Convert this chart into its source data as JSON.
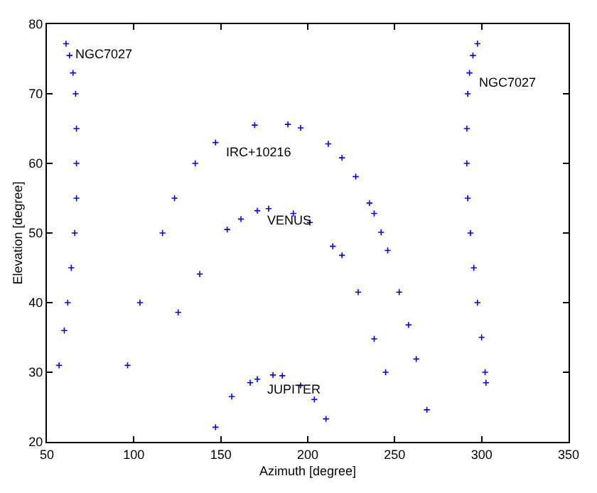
{
  "chart_data": {
    "type": "scatter",
    "xlabel": "Azimuth [degree]",
    "ylabel": "Elevation [degree]",
    "xlim": [
      50,
      350
    ],
    "xticks": [
      50,
      100,
      150,
      200,
      250,
      300,
      350
    ],
    "ylim": [
      20,
      80
    ],
    "yticks": [
      20,
      30,
      40,
      50,
      60,
      70,
      80
    ],
    "marker": "cross",
    "series": [
      {
        "color": "#0000ff",
        "x": [
          57,
          60,
          62,
          64,
          66,
          67,
          67,
          67,
          66.5,
          65,
          63,
          61
        ],
        "values": [
          31,
          36,
          40,
          45,
          50,
          55,
          60,
          65,
          70,
          73,
          75.5,
          77.2
        ]
      },
      {
        "color": "#0000ff",
        "x": [
          302.5,
          302,
          300,
          297.6,
          295.5,
          293.6,
          292,
          291.5,
          291.5,
          292,
          293,
          295,
          297.6
        ],
        "values": [
          28.5,
          30,
          35,
          40,
          45,
          50,
          55,
          60,
          65,
          70,
          73,
          75.5,
          77.2
        ]
      },
      {
        "color": "#0000ff",
        "x": [
          96.4,
          103.5,
          116.5,
          123.4,
          135.3,
          147,
          169.5,
          188.6,
          195.9,
          211.8,
          219.7,
          227.6,
          235.5,
          238.2,
          242.2,
          246,
          252.6,
          258,
          262.4,
          268.5
        ],
        "values": [
          31,
          40,
          50,
          55,
          60,
          63,
          65.5,
          65.6,
          65.1,
          62.8,
          60.8,
          58.1,
          54.3,
          52.8,
          50.1,
          47.5,
          41.5,
          36.8,
          31.9,
          24.6
        ]
      },
      {
        "color": "#0000ff",
        "x": [
          125.5,
          137.9,
          153.7,
          161.6,
          171,
          177.5,
          191.7,
          201.2,
          214.4,
          219.7,
          229,
          238.2,
          244.8
        ],
        "values": [
          38.6,
          44.1,
          50.5,
          52,
          53.2,
          53.5,
          52.8,
          51.5,
          48.1,
          46.8,
          41.5,
          34.8,
          30
        ]
      },
      {
        "color": "#0000ff",
        "x": [
          147,
          156.3,
          166.9,
          171,
          180,
          185.4,
          195.9,
          203.8,
          210.5
        ],
        "values": [
          22.1,
          26.5,
          28.5,
          29,
          29.6,
          29.5,
          28.1,
          26.1,
          23.3
        ]
      }
    ],
    "annotations": [
      {
        "text": "NGC7027",
        "x": 61,
        "y": 77.2
      },
      {
        "text": "NGC7027",
        "x": 293,
        "y": 73
      },
      {
        "text": "IRC+10216",
        "x": 147,
        "y": 63
      },
      {
        "text": "VENUS",
        "x": 171,
        "y": 53.2
      },
      {
        "text": "JUPITER",
        "x": 171,
        "y": 29
      }
    ]
  }
}
